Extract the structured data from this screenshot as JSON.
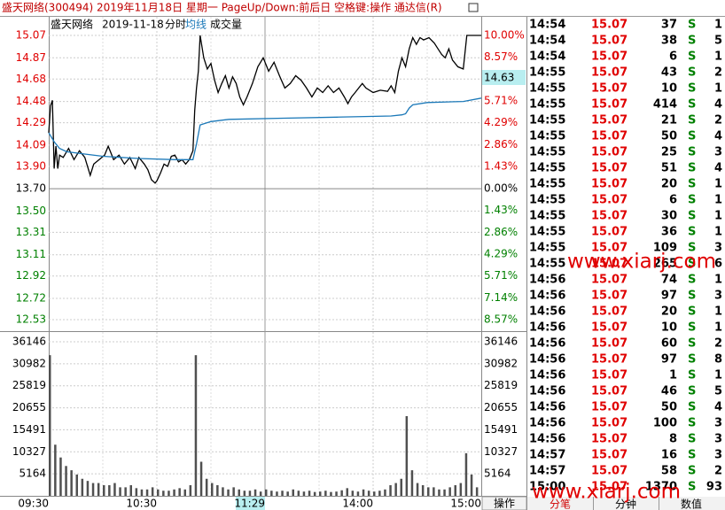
{
  "window": {
    "title": "盛天网络(300494) 2019年11月18日 星期一 PageUp/Down:前后日 空格键:操作 通达信(R)"
  },
  "chart_data": {
    "type": "line",
    "header": {
      "name": "盛天网络",
      "date": "2019-11-18"
    },
    "xlim": [
      0,
      240
    ],
    "xticks": [
      {
        "value": 0,
        "label": "09:30"
      },
      {
        "value": 60,
        "label": "10:30"
      },
      {
        "value": 120,
        "label": "11:29"
      },
      {
        "value": 180,
        "label": "14:00"
      },
      {
        "value": 240,
        "label": "15:00"
      }
    ],
    "ylim": [
      12.53,
      15.07
    ],
    "yticks": [
      15.07,
      14.87,
      14.68,
      14.48,
      14.29,
      14.09,
      {
        "value": 13.9,
        "label": "13.90"
      },
      {
        "value": 13.7,
        "label": "13.70"
      },
      {
        "value": 13.5,
        "label": "13.50"
      },
      13.31,
      13.11,
      12.92,
      12.72,
      12.53
    ],
    "y2lim": [
      -8.57,
      10
    ],
    "y2ticks": [
      {
        "value": 10,
        "label": "10.00%"
      },
      {
        "value": 8.57,
        "label": "8.57%"
      },
      {
        "value": 5.71,
        "label": "5.71%"
      },
      {
        "value": 4.29,
        "label": "4.29%"
      },
      {
        "value": 2.86,
        "label": "2.86%"
      },
      {
        "value": 1.43,
        "label": "1.43%"
      },
      {
        "value": 0,
        "label": "0.00%"
      },
      {
        "value": -1.43,
        "label": "1.43%"
      },
      {
        "value": -2.86,
        "label": "2.86%"
      },
      {
        "value": -4.29,
        "label": "4.29%"
      },
      {
        "value": -5.71,
        "label": "5.71%"
      },
      {
        "value": -7.14,
        "label": "7.14%"
      },
      {
        "value": -8.57,
        "label": "8.57%"
      }
    ],
    "cursor_label": "14.63",
    "grid": true,
    "series": [
      {
        "name": "分时",
        "color": "#000000",
        "x": [
          0,
          1,
          2,
          3,
          4,
          5,
          6,
          8,
          11,
          14,
          17,
          20,
          23,
          25,
          28,
          31,
          33,
          36,
          39,
          42,
          45,
          48,
          50,
          53,
          55,
          57,
          59,
          60,
          62,
          64,
          66,
          68,
          70,
          72,
          74,
          76,
          78,
          80,
          81,
          82,
          83,
          84,
          86,
          88,
          90,
          92,
          94,
          96,
          98,
          100,
          102,
          104,
          106,
          108,
          110,
          113,
          116,
          119,
          122,
          125,
          128,
          131,
          134,
          137,
          140,
          143,
          146,
          149,
          152,
          155,
          158,
          161,
          164,
          166,
          168,
          170,
          172,
          174,
          176,
          180,
          184,
          188,
          190,
          192,
          194,
          196,
          198,
          200,
          202,
          204,
          206,
          208,
          211,
          214,
          216,
          218,
          220,
          222,
          224,
          227,
          230,
          232,
          240
        ],
        "values": [
          14.2,
          14.44,
          14.49,
          13.88,
          14.08,
          13.88,
          14.0,
          13.98,
          14.06,
          13.96,
          14.04,
          13.98,
          13.82,
          13.92,
          13.96,
          14.0,
          14.08,
          13.96,
          14.0,
          13.92,
          13.98,
          13.88,
          13.98,
          13.92,
          13.87,
          13.78,
          13.75,
          13.77,
          13.84,
          13.92,
          13.9,
          13.99,
          14.0,
          13.94,
          13.96,
          13.92,
          13.96,
          14.04,
          14.4,
          14.6,
          14.75,
          15.07,
          14.87,
          14.77,
          14.82,
          14.67,
          14.56,
          14.64,
          14.71,
          14.6,
          14.7,
          14.64,
          14.52,
          14.45,
          14.52,
          14.64,
          14.79,
          14.87,
          14.75,
          14.83,
          14.71,
          14.6,
          14.64,
          14.71,
          14.67,
          14.6,
          14.52,
          14.6,
          14.56,
          14.62,
          14.56,
          14.6,
          14.52,
          14.46,
          14.52,
          14.56,
          14.6,
          14.64,
          14.6,
          14.56,
          14.58,
          14.57,
          14.62,
          14.56,
          14.75,
          14.87,
          14.79,
          14.95,
          15.05,
          14.99,
          15.05,
          15.03,
          15.05,
          15.0,
          14.95,
          14.9,
          14.87,
          14.95,
          14.85,
          14.79,
          14.77,
          15.07,
          15.07
        ]
      },
      {
        "name": "均线",
        "color": "#1a78b8",
        "x": [
          0,
          3,
          6,
          10,
          20,
          30,
          50,
          70,
          80,
          82,
          84,
          90,
          100,
          130,
          160,
          190,
          196,
          198,
          200,
          202,
          210,
          230,
          240
        ],
        "values": [
          14.2,
          14.12,
          14.06,
          14.03,
          14.01,
          13.99,
          13.97,
          13.96,
          13.96,
          14.1,
          14.27,
          14.3,
          14.32,
          14.33,
          14.34,
          14.35,
          14.36,
          14.37,
          14.42,
          14.45,
          14.47,
          14.48,
          14.51
        ]
      }
    ],
    "volume": {
      "name": "成交量",
      "color": "#505050",
      "vlim": [
        0,
        36146
      ],
      "vticks": [
        36146,
        30982,
        25819,
        20655,
        15491,
        10327,
        5164
      ],
      "x": [
        0,
        3,
        6,
        9,
        12,
        15,
        18,
        21,
        24,
        27,
        30,
        33,
        36,
        39,
        42,
        45,
        48,
        51,
        54,
        57,
        60,
        63,
        66,
        69,
        72,
        75,
        78,
        81,
        84,
        87,
        90,
        93,
        96,
        99,
        102,
        105,
        108,
        111,
        114,
        117,
        120,
        123,
        126,
        129,
        132,
        135,
        138,
        141,
        144,
        147,
        150,
        153,
        156,
        159,
        162,
        165,
        168,
        171,
        174,
        177,
        180,
        183,
        186,
        189,
        192,
        195,
        198,
        201,
        204,
        207,
        210,
        213,
        216,
        219,
        222,
        225,
        228,
        231,
        234,
        237
      ],
      "values": [
        33000,
        12000,
        9000,
        7000,
        6000,
        5000,
        4000,
        3500,
        3000,
        3000,
        2500,
        2500,
        3000,
        2000,
        2000,
        2500,
        1800,
        1500,
        1500,
        2000,
        1500,
        1200,
        1200,
        1500,
        1800,
        1500,
        2500,
        33000,
        8000,
        4000,
        3000,
        2500,
        2000,
        1500,
        2000,
        1500,
        1200,
        1200,
        1500,
        1000,
        1500,
        1200,
        1000,
        1200,
        1000,
        1500,
        1200,
        1000,
        1200,
        900,
        1000,
        1200,
        900,
        1000,
        1300,
        1800,
        1200,
        1000,
        1500,
        1200,
        1000,
        1200,
        1500,
        2500,
        3000,
        4000,
        18700,
        6000,
        3000,
        2500,
        2000,
        2000,
        1500,
        1500,
        2000,
        2500,
        3000,
        10000,
        5000,
        2000
      ]
    }
  },
  "tick_list": {
    "rows": [
      [
        "14:54",
        "15.07",
        "37",
        "S",
        "1"
      ],
      [
        "14:54",
        "15.07",
        "38",
        "S",
        "5"
      ],
      [
        "14:54",
        "15.07",
        "6",
        "S",
        "1"
      ],
      [
        "14:55",
        "15.07",
        "43",
        "S",
        "2"
      ],
      [
        "14:55",
        "15.07",
        "10",
        "S",
        "1"
      ],
      [
        "14:55",
        "15.07",
        "414",
        "S",
        "4"
      ],
      [
        "14:55",
        "15.07",
        "21",
        "S",
        "2"
      ],
      [
        "14:55",
        "15.07",
        "50",
        "S",
        "4"
      ],
      [
        "14:55",
        "15.07",
        "25",
        "S",
        "3"
      ],
      [
        "14:55",
        "15.07",
        "51",
        "S",
        "4"
      ],
      [
        "14:55",
        "15.07",
        "20",
        "S",
        "1"
      ],
      [
        "14:55",
        "15.07",
        "6",
        "S",
        "1"
      ],
      [
        "14:55",
        "15.07",
        "30",
        "S",
        "1"
      ],
      [
        "14:55",
        "15.07",
        "36",
        "S",
        "1"
      ],
      [
        "14:55",
        "15.07",
        "109",
        "S",
        "3"
      ],
      [
        "14:55",
        "15.07",
        "265",
        "S",
        "6"
      ],
      [
        "14:56",
        "15.07",
        "74",
        "S",
        "1"
      ],
      [
        "14:56",
        "15.07",
        "97",
        "S",
        "3"
      ],
      [
        "14:56",
        "15.07",
        "20",
        "S",
        "1"
      ],
      [
        "14:56",
        "15.07",
        "10",
        "S",
        "1"
      ],
      [
        "14:56",
        "15.07",
        "60",
        "S",
        "2"
      ],
      [
        "14:56",
        "15.07",
        "97",
        "S",
        "8"
      ],
      [
        "14:56",
        "15.07",
        "1",
        "S",
        "1"
      ],
      [
        "14:56",
        "15.07",
        "46",
        "S",
        "5"
      ],
      [
        "14:56",
        "15.07",
        "50",
        "S",
        "4"
      ],
      [
        "14:56",
        "15.07",
        "100",
        "S",
        "3"
      ],
      [
        "14:56",
        "15.07",
        "8",
        "S",
        "3"
      ],
      [
        "14:57",
        "15.07",
        "16",
        "S",
        "3"
      ],
      [
        "14:57",
        "15.07",
        "58",
        "S",
        "2"
      ],
      [
        "15:00",
        "15.07",
        "1370",
        "S",
        "93"
      ]
    ]
  },
  "tabs": {
    "operate": "操作",
    "ticks": "分笔",
    "minutes": "分钟",
    "values": "数值"
  },
  "watermark": [
    "www.xiarj.com",
    "www.xiarj.com"
  ]
}
